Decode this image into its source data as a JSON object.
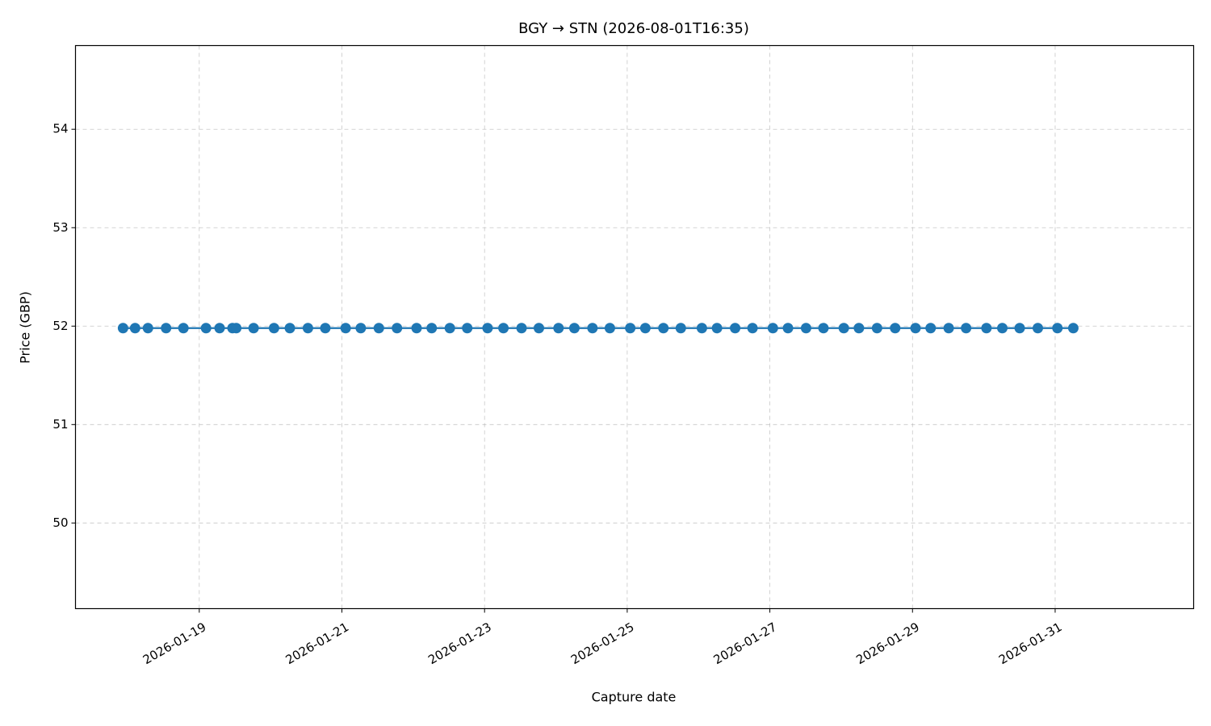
{
  "chart_data": {
    "type": "line",
    "title": "BGY → STN (2026-08-01T16:35)",
    "xlabel": "Capture date",
    "ylabel": "Price (GBP)",
    "x": [
      "2026-01-17T22:21",
      "2026-01-18T02:25",
      "2026-01-18T06:44",
      "2026-01-18T12:50",
      "2026-01-18T18:40",
      "2026-01-19T02:17",
      "2026-01-19T06:51",
      "2026-01-19T11:11",
      "2026-01-19T12:27",
      "2026-01-19T18:17",
      "2026-01-20T01:09",
      "2026-01-20T06:29",
      "2026-01-20T12:34",
      "2026-01-20T18:25",
      "2026-01-21T01:16",
      "2026-01-21T06:21",
      "2026-01-21T12:26",
      "2026-01-21T18:32",
      "2026-01-22T01:08",
      "2026-01-22T06:13",
      "2026-01-22T12:19",
      "2026-01-22T18:10",
      "2026-01-23T01:01",
      "2026-01-23T06:21",
      "2026-01-23T12:27",
      "2026-01-23T18:17",
      "2026-01-24T00:53",
      "2026-01-24T06:13",
      "2026-01-24T12:19",
      "2026-01-24T18:10",
      "2026-01-25T01:01",
      "2026-01-25T06:06",
      "2026-01-25T12:11",
      "2026-01-25T18:02",
      "2026-01-26T01:08",
      "2026-01-26T06:13",
      "2026-01-26T12:19",
      "2026-01-26T18:10",
      "2026-01-27T01:01",
      "2026-01-27T06:06",
      "2026-01-27T12:11",
      "2026-01-27T18:02",
      "2026-01-28T00:53",
      "2026-01-28T05:58",
      "2026-01-28T12:04",
      "2026-01-28T18:10",
      "2026-01-29T01:01",
      "2026-01-29T06:06",
      "2026-01-29T12:11",
      "2026-01-29T18:02",
      "2026-01-30T00:53",
      "2026-01-30T06:13",
      "2026-01-30T12:04",
      "2026-01-30T18:10",
      "2026-01-31T00:46",
      "2026-01-31T06:06"
    ],
    "values": [
      51.98,
      51.98,
      51.98,
      51.98,
      51.98,
      51.98,
      51.98,
      51.98,
      51.98,
      51.98,
      51.98,
      51.98,
      51.98,
      51.98,
      51.98,
      51.98,
      51.98,
      51.98,
      51.98,
      51.98,
      51.98,
      51.98,
      51.98,
      51.98,
      51.98,
      51.98,
      51.98,
      51.98,
      51.98,
      51.98,
      51.98,
      51.98,
      51.98,
      51.98,
      51.98,
      51.98,
      51.98,
      51.98,
      51.98,
      51.98,
      51.98,
      51.98,
      51.98,
      51.98,
      51.98,
      51.98,
      51.98,
      51.98,
      51.98,
      51.98,
      51.98,
      51.98,
      51.98,
      51.98,
      51.98,
      51.98
    ],
    "color": "#1f77b4",
    "xlim": [
      "2026-01-17T06:21",
      "2026-02-01T22:36"
    ],
    "xticks": [
      "2026-01-19",
      "2026-01-21",
      "2026-01-23",
      "2026-01-25",
      "2026-01-27",
      "2026-01-29",
      "2026-01-31"
    ],
    "ylim": [
      49.13,
      54.85
    ],
    "yticks": [
      50,
      51,
      52,
      53,
      54
    ],
    "grid": true
  }
}
